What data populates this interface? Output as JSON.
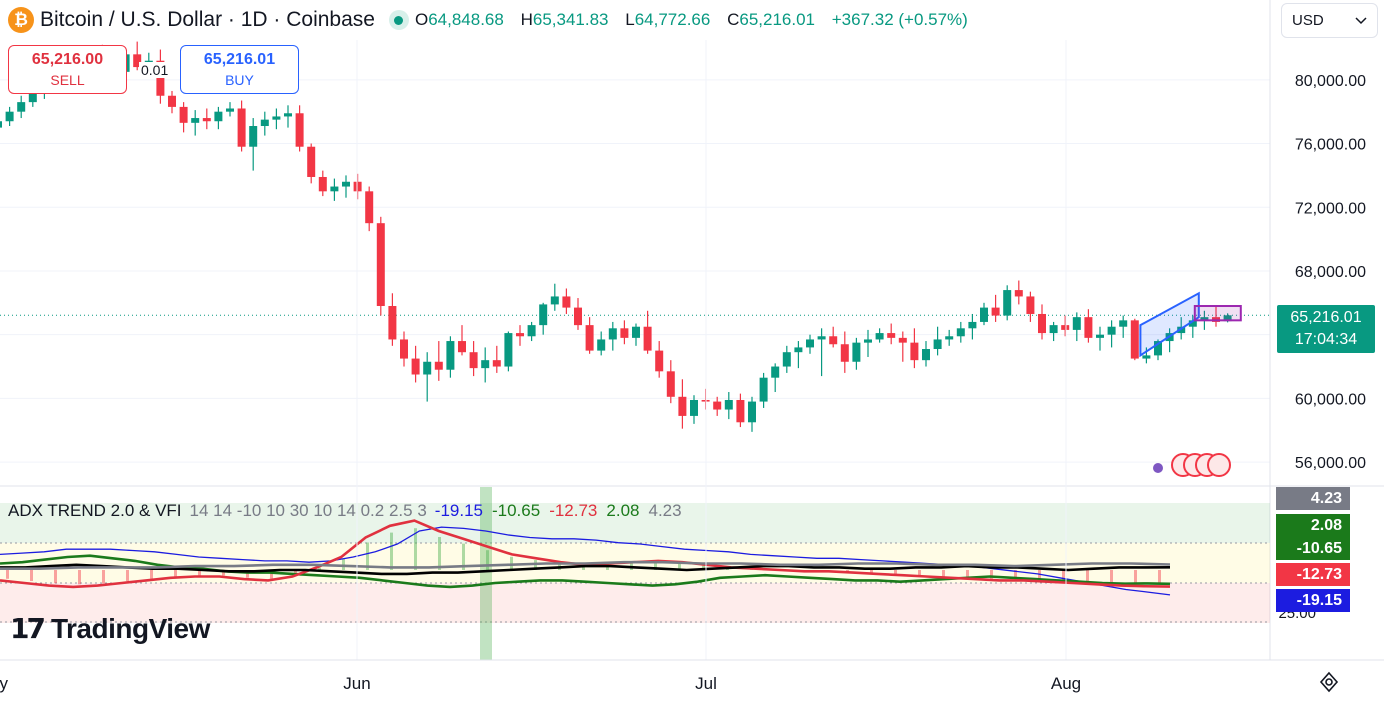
{
  "header": {
    "title": "Bitcoin / U.S. Dollar · 1D · Coinbase",
    "coin_symbol": "₿",
    "open_label": "O",
    "open": "64,848.68",
    "high_label": "H",
    "high": "65,341.83",
    "low_label": "L",
    "low": "64,772.66",
    "close_label": "C",
    "close": "65,216.01",
    "change": "+367.32 (+0.57%)"
  },
  "currency": {
    "selected": "USD"
  },
  "trade": {
    "sell_price": "65,216.00",
    "sell_label": "SELL",
    "buy_price": "65,216.01",
    "buy_label": "BUY",
    "spread": "0.01"
  },
  "price_tag": {
    "price": "65,216.01",
    "countdown": "17:04:34"
  },
  "indicator": {
    "name": "ADX TREND 2.0 & VFI",
    "params": "14 14 -10 10 30 10 14 0.2 2.5 3",
    "values": [
      {
        "value": "-19.15",
        "color": "#1c1ce0"
      },
      {
        "value": "-10.65",
        "color": "#1b7a1b"
      },
      {
        "value": "-12.73",
        "color": "#e0313f"
      },
      {
        "value": "2.08",
        "color": "#1b7a1b"
      },
      {
        "value": "4.23",
        "color": "#787b86"
      }
    ],
    "scale_label": "25.00",
    "badges": [
      {
        "value": "4.23",
        "color": "#787b86"
      },
      {
        "value": "2.08",
        "color": "#1b7a1b"
      },
      {
        "value": "-10.65",
        "color": "#1b7a1b"
      },
      {
        "value": "-12.73",
        "color": "#f23645"
      },
      {
        "value": "-19.15",
        "color": "#1c1ce0"
      }
    ]
  },
  "brand": {
    "name": "TradingView"
  },
  "colors": {
    "up": "#089981",
    "down": "#f23645",
    "accent": "#2962ff"
  },
  "chart_data": {
    "type": "candlestick",
    "y_ticks": [
      56000,
      60000,
      64000,
      68000,
      72000,
      76000,
      80000
    ],
    "y_tick_labels": [
      "56,000.00",
      "60,000.00",
      "68,000.00",
      "72,000.00",
      "76,000.00",
      "80,000.00"
    ],
    "x_tick_labels": [
      {
        "label": "May",
        "index": 0
      },
      {
        "label": "Jun",
        "index": 30
      },
      {
        "label": "Jul",
        "index": 60
      },
      {
        "label": "Aug",
        "index": 91
      }
    ],
    "last_price": 65216.01,
    "ohlc": [
      [
        77000,
        77600,
        76300,
        77400
      ],
      [
        77400,
        78300,
        77100,
        78000
      ],
      [
        78000,
        79000,
        77600,
        78600
      ],
      [
        78600,
        79500,
        78300,
        79200
      ],
      [
        79200,
        80300,
        78800,
        80000
      ],
      [
        80000,
        81000,
        79600,
        80600
      ],
      [
        80600,
        81600,
        80200,
        81100
      ],
      [
        81100,
        81900,
        80600,
        81400
      ],
      [
        81400,
        82100,
        80900,
        81700
      ],
      [
        81700,
        82200,
        80600,
        81000
      ],
      [
        81000,
        81600,
        80300,
        80500
      ],
      [
        80500,
        81900,
        80100,
        81600
      ],
      [
        81600,
        82400,
        80600,
        80800
      ],
      [
        80800,
        81700,
        80200,
        81200
      ],
      [
        81200,
        81900,
        78500,
        79000
      ],
      [
        79000,
        79300,
        77900,
        78300
      ],
      [
        78300,
        78600,
        76700,
        77300
      ],
      [
        77300,
        78100,
        76500,
        77600
      ],
      [
        77600,
        78200,
        76900,
        77400
      ],
      [
        77400,
        78300,
        76900,
        78000
      ],
      [
        78000,
        78600,
        77700,
        78200
      ],
      [
        78200,
        78700,
        75500,
        75800
      ],
      [
        75800,
        77600,
        74300,
        77100
      ],
      [
        77100,
        78000,
        76500,
        77500
      ],
      [
        77500,
        78200,
        76900,
        77700
      ],
      [
        77700,
        78400,
        77000,
        77900
      ],
      [
        77900,
        78400,
        75500,
        75800
      ],
      [
        75800,
        76000,
        73500,
        73900
      ],
      [
        73900,
        74300,
        72700,
        73000
      ],
      [
        73000,
        73800,
        72400,
        73300
      ],
      [
        73300,
        74000,
        72600,
        73600
      ],
      [
        73600,
        74100,
        72500,
        73000
      ],
      [
        73000,
        73300,
        70500,
        71000
      ],
      [
        71000,
        71400,
        65200,
        65800
      ],
      [
        65800,
        66600,
        63300,
        63700
      ],
      [
        63700,
        64200,
        62000,
        62500
      ],
      [
        62500,
        63300,
        61000,
        61500
      ],
      [
        61500,
        62900,
        59800,
        62300
      ],
      [
        62300,
        63600,
        61100,
        61800
      ],
      [
        61800,
        63900,
        61300,
        63600
      ],
      [
        63600,
        64600,
        62700,
        62900
      ],
      [
        62900,
        63600,
        61400,
        61900
      ],
      [
        61900,
        63200,
        61000,
        62400
      ],
      [
        62400,
        63300,
        61600,
        62000
      ],
      [
        62000,
        64200,
        61700,
        64100
      ],
      [
        64100,
        64600,
        63300,
        63900
      ],
      [
        63900,
        64800,
        63600,
        64600
      ],
      [
        64600,
        66000,
        64000,
        65900
      ],
      [
        65900,
        67200,
        65500,
        66400
      ],
      [
        66400,
        66900,
        65300,
        65700
      ],
      [
        65700,
        66300,
        64300,
        64600
      ],
      [
        64600,
        65100,
        62800,
        63000
      ],
      [
        63000,
        64200,
        62700,
        63700
      ],
      [
        63700,
        64800,
        63000,
        64400
      ],
      [
        64400,
        64900,
        63400,
        63800
      ],
      [
        63800,
        64700,
        63300,
        64500
      ],
      [
        64500,
        65500,
        62800,
        63000
      ],
      [
        63000,
        63600,
        61300,
        61700
      ],
      [
        61700,
        62400,
        59700,
        60100
      ],
      [
        60100,
        61200,
        58100,
        58900
      ],
      [
        58900,
        60200,
        58400,
        59900
      ],
      [
        59900,
        60600,
        59300,
        59800
      ],
      [
        59800,
        60100,
        58900,
        59300
      ],
      [
        59300,
        60400,
        58700,
        59900
      ],
      [
        59900,
        60300,
        58200,
        58500
      ],
      [
        58500,
        60100,
        57900,
        59800
      ],
      [
        59800,
        61600,
        59400,
        61300
      ],
      [
        61300,
        62200,
        60400,
        62000
      ],
      [
        62000,
        63300,
        61600,
        62900
      ],
      [
        62900,
        63600,
        61900,
        63200
      ],
      [
        63200,
        64000,
        62800,
        63700
      ],
      [
        63700,
        64400,
        61400,
        63900
      ],
      [
        63900,
        64500,
        63200,
        63400
      ],
      [
        63400,
        64200,
        61600,
        62300
      ],
      [
        62300,
        63800,
        61800,
        63500
      ],
      [
        63500,
        64300,
        62600,
        63700
      ],
      [
        63700,
        64400,
        63500,
        64100
      ],
      [
        64100,
        64700,
        63400,
        63800
      ],
      [
        63800,
        64200,
        62300,
        63500
      ],
      [
        63500,
        64400,
        61900,
        62400
      ],
      [
        62400,
        63600,
        62000,
        63100
      ],
      [
        63100,
        64500,
        62700,
        63700
      ],
      [
        63700,
        64300,
        63300,
        63900
      ],
      [
        63900,
        64800,
        63500,
        64400
      ],
      [
        64400,
        65300,
        63700,
        64800
      ],
      [
        64800,
        66000,
        64600,
        65700
      ],
      [
        65700,
        66500,
        64800,
        65200
      ],
      [
        65200,
        67100,
        64900,
        66800
      ],
      [
        66800,
        67400,
        65900,
        66400
      ],
      [
        66400,
        66700,
        64800,
        65300
      ],
      [
        65300,
        65900,
        63700,
        64100
      ],
      [
        64100,
        64800,
        63600,
        64600
      ],
      [
        64600,
        65200,
        63900,
        64300
      ],
      [
        64300,
        65400,
        63600,
        65100
      ],
      [
        65100,
        65600,
        63500,
        63800
      ],
      [
        63800,
        64500,
        63000,
        64000
      ],
      [
        64000,
        64900,
        63200,
        64500
      ],
      [
        64500,
        65200,
        63800,
        64900
      ],
      [
        64900,
        65000,
        62400,
        62500
      ],
      [
        62500,
        63200,
        62200,
        62700
      ],
      [
        62700,
        63700,
        62400,
        63600
      ],
      [
        63600,
        64400,
        62900,
        64100
      ],
      [
        64100,
        65100,
        63700,
        64500
      ],
      [
        64500,
        65200,
        63800,
        64900
      ],
      [
        64900,
        65500,
        64300,
        65100
      ],
      [
        65100,
        65800,
        64500,
        64800
      ],
      [
        64848.68,
        65341.83,
        64772.66,
        65216.01
      ]
    ],
    "adx_trend_lines": [
      {
        "name": "-19.15",
        "color": "#1c1ce0",
        "values": [
          12,
          13,
          14,
          16,
          16,
          16,
          15,
          14,
          12,
          10,
          9,
          8,
          7,
          7,
          6,
          7,
          10,
          14,
          20,
          30,
          33,
          32,
          30,
          27,
          25,
          24,
          24,
          23,
          21,
          20,
          18,
          16,
          15,
          14,
          12,
          11,
          10,
          9,
          9,
          8,
          7,
          6,
          5,
          4,
          3,
          1,
          -1,
          -3,
          -6,
          -9,
          -12,
          -15,
          -17,
          -19.15
        ]
      },
      {
        "name": "-10.65",
        "color": "#1b7a1b",
        "values": [
          5,
          6,
          8,
          10,
          11,
          9,
          7,
          4,
          2,
          1,
          -1,
          -2,
          -2,
          -3,
          -4,
          -5,
          -6,
          -8,
          -10,
          -12,
          -13,
          -12,
          -10,
          -9,
          -8,
          -8,
          -9,
          -10,
          -11,
          -12,
          -11,
          -9,
          -6,
          -5,
          -4,
          -5,
          -6,
          -7,
          -8,
          -8,
          -9,
          -8,
          -7,
          -6,
          -5,
          -6,
          -7,
          -8,
          -9,
          -10,
          -10.5,
          -10.3,
          -10.65
        ]
      },
      {
        "name": "-12.73",
        "color": "#e0313f",
        "values": [
          -8,
          -10,
          -12,
          -13,
          -12,
          -10,
          -8,
          -6,
          -5,
          -5,
          -7,
          -8,
          -5,
          2,
          10,
          25,
          34,
          38,
          30,
          24,
          18,
          12,
          9,
          6,
          4,
          5,
          6,
          7,
          6,
          4,
          2,
          1,
          0,
          -1,
          -1,
          -2,
          -3,
          -4,
          -5,
          -6,
          -7,
          -8,
          -8,
          -9,
          -10,
          -11,
          -12,
          -12.5,
          -12.73
        ]
      },
      {
        "name": "2.08",
        "color": "#000000",
        "values": [
          2,
          2,
          3,
          4,
          3,
          2,
          1,
          1,
          0,
          -1,
          -1,
          0,
          0,
          -1,
          -2,
          -3,
          -3,
          -2,
          -2,
          -1,
          0,
          1,
          2,
          3,
          3,
          2,
          1,
          0,
          1,
          2,
          3,
          3,
          2,
          2,
          1,
          1,
          2,
          2,
          3,
          2,
          2,
          1,
          0,
          1,
          2,
          2,
          2.08
        ]
      },
      {
        "name": "4.23",
        "color": "#787b86",
        "values": [
          1,
          1,
          2,
          2,
          2,
          3,
          3,
          4,
          4,
          3,
          2,
          2,
          3,
          4,
          5,
          5,
          6,
          6,
          5,
          5,
          4,
          4,
          5,
          5,
          4,
          4,
          3,
          4,
          5,
          5,
          4.23
        ]
      }
    ]
  }
}
